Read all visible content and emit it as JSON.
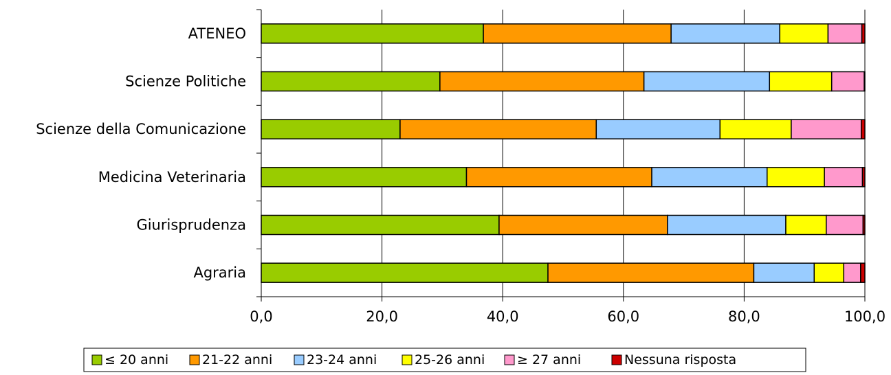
{
  "chart_data": {
    "type": "bar",
    "orientation": "horizontal",
    "stacked": true,
    "categories": [
      "ATENEO",
      "Scienze Politiche",
      "Scienze della Comunicazione",
      "Medicina Veterinaria",
      "Giurisprudenza",
      "Agraria"
    ],
    "series": [
      {
        "name": "≤ 20 anni",
        "color": "#99cc00",
        "values": [
          36.8,
          29.6,
          23.0,
          34.0,
          39.4,
          47.5
        ]
      },
      {
        "name": "21-22 anni",
        "color": "#ff9900",
        "values": [
          31.1,
          33.8,
          32.5,
          30.7,
          27.9,
          34.1
        ]
      },
      {
        "name": "23-24 anni",
        "color": "#99ccff",
        "values": [
          18.0,
          20.8,
          20.5,
          19.1,
          19.6,
          10.0
        ]
      },
      {
        "name": "25-26 anni",
        "color": "#ffff00",
        "values": [
          8.0,
          10.3,
          11.8,
          9.5,
          6.7,
          4.9
        ]
      },
      {
        "name": "≥ 27 anni",
        "color": "#ff99cc",
        "values": [
          5.6,
          5.4,
          11.6,
          6.3,
          6.1,
          2.8
        ]
      },
      {
        "name": "Nessuna risposta",
        "color": "#cc0000",
        "values": [
          0.5,
          0.1,
          0.6,
          0.4,
          0.3,
          0.7
        ]
      }
    ],
    "xlim": [
      0,
      100
    ],
    "xticks": [
      "0,0",
      "20,0",
      "40,0",
      "60,0",
      "80,0",
      "100,0"
    ],
    "xlabel": "",
    "ylabel": "",
    "title": "",
    "grid": "vertical",
    "legend_position": "bottom"
  }
}
